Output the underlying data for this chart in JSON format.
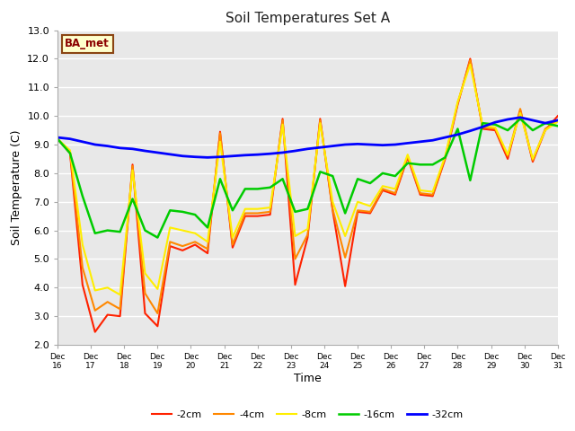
{
  "title": "Soil Temperatures Set A",
  "xlabel": "Time",
  "ylabel": "Soil Temperature (C)",
  "ylim": [
    2.0,
    13.0
  ],
  "yticks": [
    2.0,
    3.0,
    4.0,
    5.0,
    6.0,
    7.0,
    8.0,
    9.0,
    10.0,
    11.0,
    12.0,
    13.0
  ],
  "x_labels": [
    "Dec 16",
    "Dec 17",
    "Dec 18",
    "Dec 19",
    "Dec 20",
    "Dec 21",
    "Dec 22",
    "Dec 23",
    "Dec 24",
    "Dec 25",
    "Dec 26",
    "Dec 27",
    "Dec 28",
    "Dec 29",
    "Dec 30",
    "Dec 31"
  ],
  "bg_color": "#e8e8e8",
  "fig_color": "#ffffff",
  "annotation_label": "BA_met",
  "annotation_color": "#8b0000",
  "annotation_bg": "#ffffcc",
  "annotation_border": "#8b4513",
  "series": [
    {
      "label": "-2cm",
      "color": "#ff2200",
      "lw": 1.5,
      "data": [
        9.2,
        8.7,
        4.1,
        2.45,
        3.05,
        3.0,
        8.3,
        3.1,
        2.65,
        5.45,
        5.3,
        5.5,
        5.2,
        9.45,
        5.4,
        6.5,
        6.5,
        6.55,
        9.9,
        4.1,
        5.75,
        9.9,
        6.7,
        4.05,
        6.65,
        6.6,
        7.4,
        7.25,
        8.55,
        7.25,
        7.2,
        8.5,
        10.4,
        12.0,
        9.55,
        9.5,
        8.5,
        10.2,
        8.4,
        9.5,
        10.0
      ]
    },
    {
      "label": "-4cm",
      "color": "#ff8800",
      "lw": 1.5,
      "data": [
        9.2,
        8.75,
        4.7,
        3.2,
        3.5,
        3.25,
        8.25,
        3.8,
        3.1,
        5.6,
        5.45,
        5.6,
        5.35,
        9.4,
        5.5,
        6.6,
        6.6,
        6.65,
        9.85,
        5.0,
        5.85,
        9.85,
        6.75,
        5.05,
        6.7,
        6.65,
        7.45,
        7.3,
        8.6,
        7.3,
        7.25,
        8.55,
        10.45,
        11.95,
        9.6,
        9.55,
        8.6,
        10.25,
        8.45,
        9.55,
        9.85
      ]
    },
    {
      "label": "-8cm",
      "color": "#ffee00",
      "lw": 1.5,
      "data": [
        9.2,
        8.8,
        5.5,
        3.9,
        4.0,
        3.75,
        8.1,
        4.5,
        3.95,
        6.1,
        6.0,
        5.9,
        5.6,
        9.1,
        5.75,
        6.75,
        6.75,
        6.8,
        9.7,
        5.8,
        6.05,
        9.75,
        7.0,
        5.8,
        7.0,
        6.85,
        7.55,
        7.45,
        8.65,
        7.4,
        7.35,
        8.6,
        10.5,
        11.8,
        9.65,
        9.6,
        8.65,
        10.1,
        8.5,
        9.5,
        9.8
      ]
    },
    {
      "label": "-16cm",
      "color": "#00cc00",
      "lw": 1.8,
      "data": [
        9.2,
        8.7,
        7.2,
        5.9,
        6.0,
        5.95,
        7.1,
        6.0,
        5.75,
        6.7,
        6.65,
        6.55,
        6.1,
        7.8,
        6.7,
        7.45,
        7.45,
        7.5,
        7.8,
        6.65,
        6.75,
        8.05,
        7.9,
        6.6,
        7.8,
        7.65,
        8.0,
        7.9,
        8.35,
        8.3,
        8.3,
        8.55,
        9.55,
        7.75,
        9.75,
        9.7,
        9.5,
        9.9,
        9.5,
        9.75,
        9.65
      ]
    },
    {
      "label": "-32cm",
      "color": "#0000ff",
      "lw": 2.0,
      "data": [
        9.25,
        9.2,
        9.1,
        9.0,
        8.95,
        8.88,
        8.85,
        8.78,
        8.72,
        8.66,
        8.6,
        8.57,
        8.55,
        8.57,
        8.6,
        8.63,
        8.65,
        8.68,
        8.72,
        8.78,
        8.85,
        8.9,
        8.95,
        9.0,
        9.02,
        9.0,
        8.98,
        9.0,
        9.05,
        9.1,
        9.15,
        9.25,
        9.35,
        9.48,
        9.62,
        9.78,
        9.88,
        9.95,
        9.85,
        9.75,
        9.85
      ]
    }
  ]
}
